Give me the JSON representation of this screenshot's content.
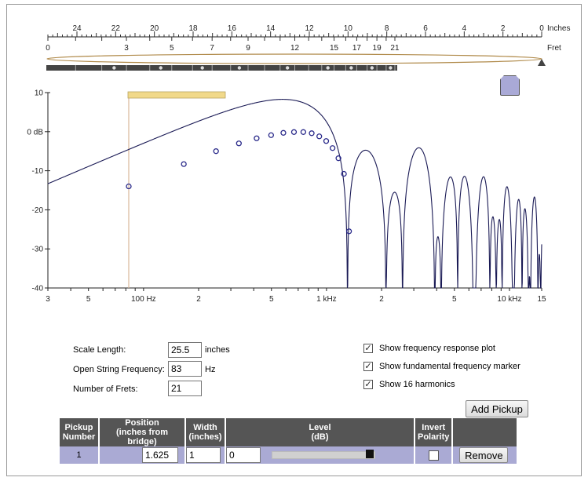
{
  "fretboard": {
    "inch_labels": [
      "24",
      "22",
      "20",
      "18",
      "16",
      "14",
      "12",
      "10",
      "8",
      "6",
      "4",
      "2",
      "0"
    ],
    "inch_unit": "Inches",
    "fret_labels": [
      "0",
      "3",
      "5",
      "7",
      "9",
      "12",
      "15",
      "17",
      "19",
      "21"
    ],
    "fret_unit": "Fret",
    "inch_values": [
      24,
      22,
      20,
      18,
      16,
      14,
      12,
      10,
      8,
      6,
      4,
      2,
      0
    ],
    "fret_values": [
      0,
      3,
      5,
      7,
      9,
      12,
      15,
      17,
      19,
      21
    ],
    "fret_dots": [
      3,
      5,
      7,
      9,
      12,
      15,
      17,
      19,
      21
    ]
  },
  "pickup_handle": {
    "position_inches": 1.625,
    "width_inches": 1
  },
  "chart_data": {
    "type": "line",
    "title": "",
    "xlabel": "",
    "ylabel": "",
    "x_scale": "log",
    "xlim_hz": [
      30,
      15000
    ],
    "ylim_db": [
      -40,
      10
    ],
    "y_ticks": [
      {
        "v": 10,
        "label": "10"
      },
      {
        "v": 0,
        "label": "0 dB"
      },
      {
        "v": -10,
        "label": "-10"
      },
      {
        "v": -20,
        "label": "-20"
      },
      {
        "v": -30,
        "label": "-30"
      },
      {
        "v": -40,
        "label": "-40"
      }
    ],
    "x_ticks": [
      {
        "hz": 30,
        "label": "3"
      },
      {
        "hz": 50,
        "label": "5"
      },
      {
        "hz": 100,
        "label": "100 Hz"
      },
      {
        "hz": 200,
        "label": "2"
      },
      {
        "hz": 500,
        "label": "5"
      },
      {
        "hz": 1000,
        "label": "1 kHz"
      },
      {
        "hz": 2000,
        "label": "2"
      },
      {
        "hz": 5000,
        "label": "5"
      },
      {
        "hz": 10000,
        "label": "10 kHz"
      },
      {
        "hz": 15000,
        "label": "15"
      }
    ],
    "fundamental_hz": 83,
    "fundamental_marker_color": "#d8b89a",
    "curve_color": "#1a1a55",
    "harmonic_color": "#2a2a8a",
    "series": [
      {
        "values_from": "pickup frequency response",
        "pickup_position_inches": 1.625,
        "scale_length_inches": 25.5
      }
    ],
    "harmonics": [
      {
        "n": 1,
        "hz": 83,
        "db": -14
      },
      {
        "n": 2,
        "hz": 166,
        "db": -8.3
      },
      {
        "n": 3,
        "hz": 249,
        "db": -5
      },
      {
        "n": 4,
        "hz": 332,
        "db": -3
      },
      {
        "n": 5,
        "hz": 415,
        "db": -1.7
      },
      {
        "n": 6,
        "hz": 498,
        "db": -0.9
      },
      {
        "n": 7,
        "hz": 581,
        "db": -0.3
      },
      {
        "n": 8,
        "hz": 664,
        "db": -0.1
      },
      {
        "n": 9,
        "hz": 747,
        "db": -0.1
      },
      {
        "n": 10,
        "hz": 830,
        "db": -0.4
      },
      {
        "n": 11,
        "hz": 913,
        "db": -1.2
      },
      {
        "n": 12,
        "hz": 996,
        "db": -2.4
      },
      {
        "n": 13,
        "hz": 1079,
        "db": -4.2
      },
      {
        "n": 14,
        "hz": 1162,
        "db": -6.8
      },
      {
        "n": 15,
        "hz": 1245,
        "db": -10.8
      },
      {
        "n": 16,
        "hz": 1328,
        "db": -25.5
      }
    ]
  },
  "settings": {
    "scale_length_label": "Scale Length:",
    "scale_length_value": "25.5",
    "scale_length_unit": "inches",
    "open_freq_label": "Open String Frequency:",
    "open_freq_value": "83",
    "open_freq_unit": "Hz",
    "num_frets_label": "Number of Frets:",
    "num_frets_value": "21"
  },
  "options": [
    {
      "label": "Show frequency response plot",
      "checked": true
    },
    {
      "label": "Show fundamental frequency marker",
      "checked": true
    },
    {
      "label": "Show 16 harmonics",
      "checked": true
    }
  ],
  "add_pickup_label": "Add Pickup",
  "table": {
    "headers": [
      {
        "line1": "Pickup",
        "line2": "Number"
      },
      {
        "line1": "Position",
        "line2": "(inches from bridge)"
      },
      {
        "line1": "Width",
        "line2": "(inches)"
      },
      {
        "line1": "Level",
        "line2": "(dB)"
      },
      {
        "line1": "Invert",
        "line2": "Polarity"
      }
    ],
    "rows": [
      {
        "number": "1",
        "position": "1.625",
        "width": "1",
        "level": "0",
        "level_slider": 1.0,
        "invert": false,
        "remove_label": "Remove"
      }
    ]
  },
  "colors": {
    "gold": "#f1d98a",
    "pickup_handle": "#a9a9d6",
    "table_header": "#555555",
    "table_row": "#aaaad4"
  }
}
